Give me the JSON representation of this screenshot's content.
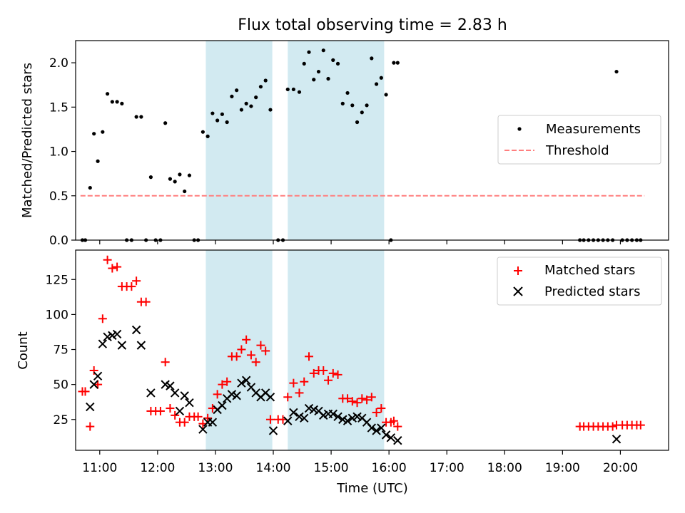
{
  "figure": {
    "title": "Flux total observing time = 2.83 h"
  },
  "colors": {
    "shade": "#add8e6",
    "matched": "#ff0000",
    "predicted": "#000000",
    "threshold": "#ff7f7f",
    "ratio": "#000000"
  },
  "chart_data": [
    {
      "type": "scatter",
      "name": "ratio-panel",
      "ylabel": "Matched/Predicted stars",
      "xlabel": "",
      "xlim": [
        "10:35",
        "20:50"
      ],
      "ylim": [
        0,
        2.25
      ],
      "yticks": [
        0.0,
        0.5,
        1.0,
        1.5,
        2.0
      ],
      "ytick_labels": [
        "0.0",
        "0.5",
        "1.0",
        "1.5",
        "2.0"
      ],
      "shaded_intervals": [
        [
          "12:50",
          "13:59"
        ],
        [
          "14:15",
          "15:55"
        ]
      ],
      "legend": {
        "position": "center-right",
        "entries": [
          "Measurements",
          "Threshold"
        ]
      },
      "threshold": {
        "name": "Threshold",
        "y": 0.5,
        "x": [
          "10:40",
          "20:25"
        ],
        "style": "dashed"
      },
      "series": [
        {
          "name": "Measurements",
          "points": [
            [
              "10:42",
              0.0
            ],
            [
              "10:45",
              0.0
            ],
            [
              "10:50",
              0.59
            ],
            [
              "10:54",
              1.2
            ],
            [
              "10:58",
              0.89
            ],
            [
              "11:03",
              1.22
            ],
            [
              "11:08",
              1.65
            ],
            [
              "11:13",
              1.56
            ],
            [
              "11:18",
              1.56
            ],
            [
              "11:23",
              1.54
            ],
            [
              "11:28",
              0.0
            ],
            [
              "11:33",
              0.0
            ],
            [
              "11:38",
              1.39
            ],
            [
              "11:43",
              1.39
            ],
            [
              "11:48",
              0.0
            ],
            [
              "11:53",
              0.71
            ],
            [
              "11:58",
              0.0
            ],
            [
              "12:03",
              0.0
            ],
            [
              "12:08",
              1.32
            ],
            [
              "12:13",
              0.69
            ],
            [
              "12:18",
              0.66
            ],
            [
              "12:23",
              0.74
            ],
            [
              "12:28",
              0.55
            ],
            [
              "12:33",
              0.73
            ],
            [
              "12:38",
              0.0
            ],
            [
              "12:42",
              0.0
            ],
            [
              "12:47",
              1.22
            ],
            [
              "12:52",
              1.17
            ],
            [
              "12:57",
              1.43
            ],
            [
              "13:02",
              1.35
            ],
            [
              "13:07",
              1.42
            ],
            [
              "13:12",
              1.33
            ],
            [
              "13:17",
              1.62
            ],
            [
              "13:22",
              1.69
            ],
            [
              "13:27",
              1.47
            ],
            [
              "13:32",
              1.54
            ],
            [
              "13:37",
              1.51
            ],
            [
              "13:42",
              1.61
            ],
            [
              "13:47",
              1.73
            ],
            [
              "13:52",
              1.8
            ],
            [
              "13:57",
              1.47
            ],
            [
              "14:05",
              0.0
            ],
            [
              "14:10",
              0.0
            ],
            [
              "14:15",
              1.7
            ],
            [
              "14:21",
              1.7
            ],
            [
              "14:27",
              1.67
            ],
            [
              "14:32",
              1.99
            ],
            [
              "14:37",
              2.12
            ],
            [
              "14:42",
              1.81
            ],
            [
              "14:47",
              1.9
            ],
            [
              "14:52",
              2.14
            ],
            [
              "14:57",
              1.82
            ],
            [
              "15:02",
              2.03
            ],
            [
              "15:07",
              1.99
            ],
            [
              "15:12",
              1.54
            ],
            [
              "15:17",
              1.66
            ],
            [
              "15:22",
              1.52
            ],
            [
              "15:27",
              1.33
            ],
            [
              "15:32",
              1.44
            ],
            [
              "15:37",
              1.52
            ],
            [
              "15:42",
              2.05
            ],
            [
              "15:47",
              1.76
            ],
            [
              "15:52",
              1.83
            ],
            [
              "15:57",
              1.64
            ],
            [
              "16:02",
              0.0
            ],
            [
              "16:05",
              2.0
            ],
            [
              "16:09",
              2.0
            ],
            [
              "19:18",
              0.0
            ],
            [
              "19:22",
              0.0
            ],
            [
              "19:27",
              0.0
            ],
            [
              "19:32",
              0.0
            ],
            [
              "19:37",
              0.0
            ],
            [
              "19:42",
              0.0
            ],
            [
              "19:47",
              0.0
            ],
            [
              "19:52",
              0.0
            ],
            [
              "19:56",
              1.9
            ],
            [
              "20:02",
              0.0
            ],
            [
              "20:07",
              0.0
            ],
            [
              "20:12",
              0.0
            ],
            [
              "20:17",
              0.0
            ],
            [
              "20:21",
              0.0
            ]
          ]
        }
      ]
    },
    {
      "type": "scatter",
      "name": "count-panel",
      "ylabel": "Count",
      "xlabel": "Time (UTC)",
      "xlim": [
        "10:35",
        "20:50"
      ],
      "ylim": [
        3,
        146
      ],
      "yticks": [
        25,
        50,
        75,
        100,
        125
      ],
      "ytick_labels": [
        "25",
        "50",
        "75",
        "100",
        "125"
      ],
      "xticks": [
        "11:00",
        "12:00",
        "13:00",
        "14:00",
        "15:00",
        "16:00",
        "17:00",
        "18:00",
        "19:00",
        "20:00"
      ],
      "xtick_labels": [
        "11:00",
        "12:00",
        "13:00",
        "14:00",
        "15:00",
        "16:00",
        "17:00",
        "18:00",
        "19:00",
        "20:00"
      ],
      "shaded_intervals": [
        [
          "12:50",
          "13:59"
        ],
        [
          "14:15",
          "15:55"
        ]
      ],
      "legend": {
        "position": "top-right",
        "entries": [
          "Matched stars",
          "Predicted stars"
        ]
      },
      "series": [
        {
          "name": "Matched stars",
          "marker": "plus",
          "points": [
            [
              "10:42",
              45
            ],
            [
              "10:45",
              45
            ],
            [
              "10:50",
              20
            ],
            [
              "10:54",
              60
            ],
            [
              "10:58",
              50
            ],
            [
              "11:03",
              97
            ],
            [
              "11:08",
              139
            ],
            [
              "11:13",
              133
            ],
            [
              "11:18",
              134
            ],
            [
              "11:23",
              120
            ],
            [
              "11:28",
              120
            ],
            [
              "11:33",
              120
            ],
            [
              "11:38",
              124
            ],
            [
              "11:43",
              109
            ],
            [
              "11:48",
              109
            ],
            [
              "11:53",
              31
            ],
            [
              "11:58",
              31
            ],
            [
              "12:03",
              31
            ],
            [
              "12:08",
              66
            ],
            [
              "12:13",
              33
            ],
            [
              "12:18",
              28
            ],
            [
              "12:23",
              23
            ],
            [
              "12:28",
              23
            ],
            [
              "12:33",
              27
            ],
            [
              "12:38",
              27
            ],
            [
              "12:42",
              27
            ],
            [
              "12:47",
              22
            ],
            [
              "12:52",
              26
            ],
            [
              "12:57",
              33
            ],
            [
              "13:02",
              43
            ],
            [
              "13:07",
              50
            ],
            [
              "13:12",
              52
            ],
            [
              "13:17",
              70
            ],
            [
              "13:22",
              70
            ],
            [
              "13:27",
              75
            ],
            [
              "13:32",
              82
            ],
            [
              "13:37",
              71
            ],
            [
              "13:42",
              66
            ],
            [
              "13:47",
              78
            ],
            [
              "13:52",
              74
            ],
            [
              "13:57",
              25
            ],
            [
              "14:05",
              25
            ],
            [
              "14:10",
              25
            ],
            [
              "14:15",
              41
            ],
            [
              "14:21",
              51
            ],
            [
              "14:27",
              44
            ],
            [
              "14:32",
              52
            ],
            [
              "14:37",
              70
            ],
            [
              "14:42",
              58
            ],
            [
              "14:47",
              60
            ],
            [
              "14:52",
              60
            ],
            [
              "14:57",
              53
            ],
            [
              "15:02",
              58
            ],
            [
              "15:07",
              57
            ],
            [
              "15:12",
              40
            ],
            [
              "15:17",
              40
            ],
            [
              "15:22",
              38
            ],
            [
              "15:27",
              37
            ],
            [
              "15:32",
              40
            ],
            [
              "15:37",
              39
            ],
            [
              "15:42",
              41
            ],
            [
              "15:47",
              30
            ],
            [
              "15:52",
              33
            ],
            [
              "15:57",
              23
            ],
            [
              "16:02",
              23
            ],
            [
              "16:05",
              24
            ],
            [
              "16:09",
              20
            ],
            [
              "19:18",
              20
            ],
            [
              "19:22",
              20
            ],
            [
              "19:27",
              20
            ],
            [
              "19:32",
              20
            ],
            [
              "19:37",
              20
            ],
            [
              "19:42",
              20
            ],
            [
              "19:47",
              20
            ],
            [
              "19:52",
              20
            ],
            [
              "19:56",
              21
            ],
            [
              "20:02",
              21
            ],
            [
              "20:07",
              21
            ],
            [
              "20:12",
              21
            ],
            [
              "20:17",
              21
            ],
            [
              "20:21",
              21
            ]
          ]
        },
        {
          "name": "Predicted stars",
          "marker": "cross",
          "points": [
            [
              "10:50",
              34
            ],
            [
              "10:54",
              50
            ],
            [
              "10:58",
              56
            ],
            [
              "11:03",
              79
            ],
            [
              "11:08",
              84
            ],
            [
              "11:13",
              85
            ],
            [
              "11:18",
              86
            ],
            [
              "11:23",
              78
            ],
            [
              "11:38",
              89
            ],
            [
              "11:43",
              78
            ],
            [
              "11:53",
              44
            ],
            [
              "12:08",
              50
            ],
            [
              "12:13",
              49
            ],
            [
              "12:18",
              44
            ],
            [
              "12:23",
              31
            ],
            [
              "12:28",
              42
            ],
            [
              "12:33",
              37
            ],
            [
              "12:47",
              18
            ],
            [
              "12:52",
              23
            ],
            [
              "12:57",
              23
            ],
            [
              "13:02",
              32
            ],
            [
              "13:07",
              35
            ],
            [
              "13:12",
              40
            ],
            [
              "13:17",
              43
            ],
            [
              "13:22",
              42
            ],
            [
              "13:27",
              51
            ],
            [
              "13:32",
              53
            ],
            [
              "13:37",
              48
            ],
            [
              "13:42",
              44
            ],
            [
              "13:47",
              41
            ],
            [
              "13:52",
              44
            ],
            [
              "13:57",
              41
            ],
            [
              "14:00",
              17
            ],
            [
              "14:15",
              24
            ],
            [
              "14:21",
              30
            ],
            [
              "14:27",
              27
            ],
            [
              "14:32",
              26
            ],
            [
              "14:37",
              33
            ],
            [
              "14:42",
              32
            ],
            [
              "14:47",
              31
            ],
            [
              "14:52",
              28
            ],
            [
              "14:57",
              29
            ],
            [
              "15:02",
              29
            ],
            [
              "15:07",
              27
            ],
            [
              "15:12",
              25
            ],
            [
              "15:17",
              24
            ],
            [
              "15:22",
              26
            ],
            [
              "15:27",
              27
            ],
            [
              "15:32",
              26
            ],
            [
              "15:37",
              23
            ],
            [
              "15:42",
              19
            ],
            [
              "15:47",
              17
            ],
            [
              "15:52",
              19
            ],
            [
              "15:57",
              14
            ],
            [
              "16:02",
              12
            ],
            [
              "16:09",
              10
            ],
            [
              "19:56",
              11
            ]
          ]
        }
      ]
    }
  ]
}
